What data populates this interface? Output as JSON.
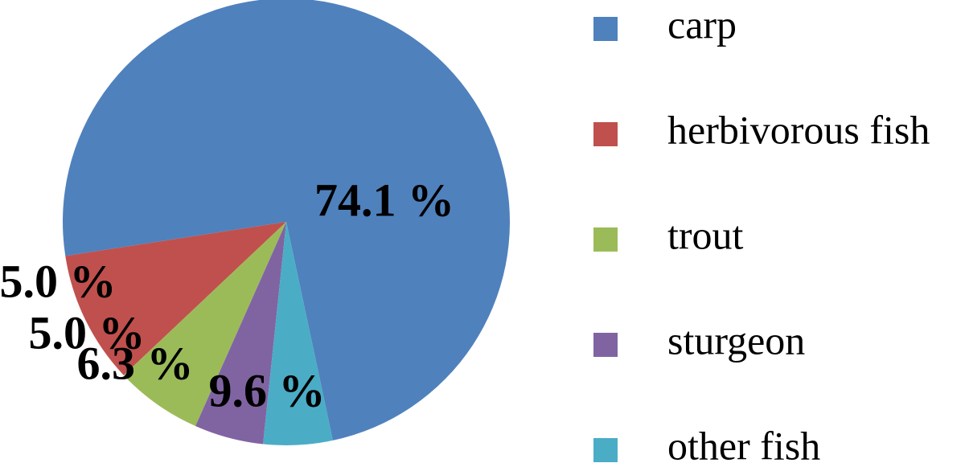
{
  "chart_data": {
    "type": "pie",
    "title": "",
    "legend_position": "right",
    "slices": [
      {
        "label": "carp",
        "value": 74.1,
        "value_label": "74.1 %",
        "color": "#4F81BD"
      },
      {
        "label": "herbivorous fish",
        "value": 9.6,
        "value_label": "9.6 %",
        "color": "#C0504D"
      },
      {
        "label": "trout",
        "value": 6.3,
        "value_label": "6.3 %",
        "color": "#9BBB59"
      },
      {
        "label": "sturgeon",
        "value": 5.0,
        "value_label": "5.0 %",
        "color": "#8064A2"
      },
      {
        "label": "other fish",
        "value": 5.0,
        "value_label": "5.0 %",
        "color": "#4BACC6"
      }
    ]
  }
}
